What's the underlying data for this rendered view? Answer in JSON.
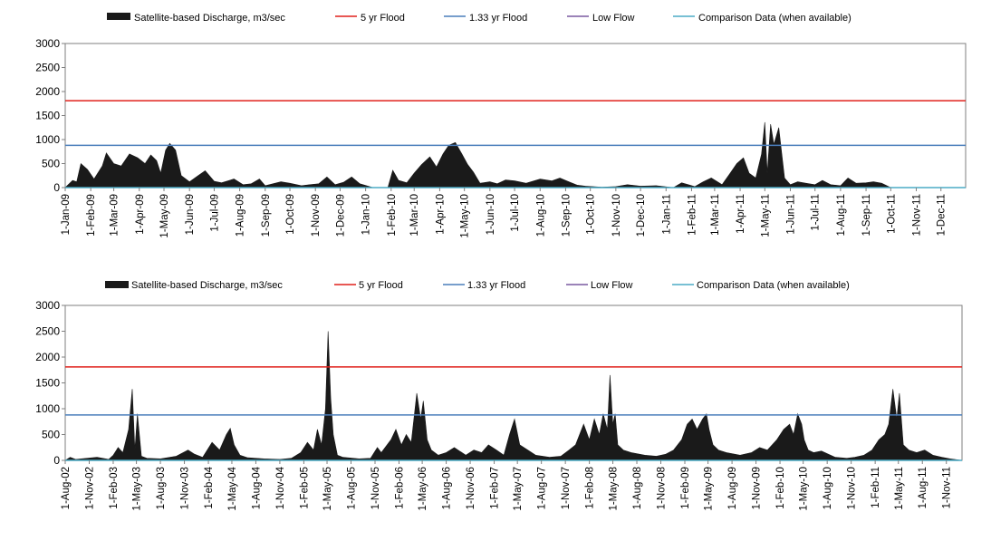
{
  "legend": {
    "discharge": "Satellite-based Discharge, m3/sec",
    "flood5": "5 yr Flood",
    "flood133": "1.33 yr Flood",
    "lowflow": "Low Flow",
    "comparison": "Comparison Data (when available)"
  },
  "colors": {
    "discharge": "#1a1a1a",
    "flood5": "#e0201b",
    "flood133": "#4a7ebb",
    "lowflow": "#7a5aa0",
    "comparison": "#4bacc6",
    "axis": "#7f7f7f"
  },
  "chart_data": [
    {
      "type": "area",
      "title": "",
      "xlabel": "",
      "ylabel": "",
      "ylim": [
        0,
        3000
      ],
      "yticks": [
        0,
        500,
        1000,
        1500,
        2000,
        2500,
        3000
      ],
      "xrange": [
        "2009-01-01",
        "2011-12-31"
      ],
      "xtick_labels": [
        "1-Jan-09",
        "1-Feb-09",
        "1-Mar-09",
        "1-Apr-09",
        "1-May-09",
        "1-Jun-09",
        "1-Jul-09",
        "1-Aug-09",
        "1-Sep-09",
        "1-Oct-09",
        "1-Nov-09",
        "1-Dec-09",
        "1-Jan-10",
        "1-Feb-10",
        "1-Mar-10",
        "1-Apr-10",
        "1-May-10",
        "1-Jun-10",
        "1-Jul-10",
        "1-Aug-10",
        "1-Sep-10",
        "1-Oct-10",
        "1-Nov-10",
        "1-Dec-10",
        "1-Jan-11",
        "1-Feb-11",
        "1-Mar-11",
        "1-Apr-11",
        "1-May-11",
        "1-Jun-11",
        "1-Jul-11",
        "1-Aug-11",
        "1-Sep-11",
        "1-Oct-11",
        "1-Nov-11",
        "1-Dec-11"
      ],
      "legend_position": "top",
      "grid": false,
      "reference_lines": [
        {
          "name": "5 yr Flood",
          "value": 1810
        },
        {
          "name": "1.33 yr Flood",
          "value": 880
        }
      ],
      "series": [
        {
          "name": "Satellite-based Discharge, m3/sec",
          "x": [
            "2009-01-01",
            "2009-01-10",
            "2009-01-15",
            "2009-01-20",
            "2009-01-28",
            "2009-02-05",
            "2009-02-15",
            "2009-02-20",
            "2009-03-01",
            "2009-03-10",
            "2009-03-20",
            "2009-03-30",
            "2009-04-08",
            "2009-04-15",
            "2009-04-22",
            "2009-04-27",
            "2009-05-03",
            "2009-05-08",
            "2009-05-15",
            "2009-05-22",
            "2009-06-01",
            "2009-06-10",
            "2009-06-20",
            "2009-07-01",
            "2009-07-10",
            "2009-07-25",
            "2009-08-05",
            "2009-08-15",
            "2009-08-25",
            "2009-09-01",
            "2009-09-20",
            "2009-10-01",
            "2009-10-15",
            "2009-10-25",
            "2009-11-05",
            "2009-11-15",
            "2009-11-25",
            "2009-12-05",
            "2009-12-15",
            "2009-12-25",
            "2010-01-10",
            "2010-01-28",
            "2010-02-03",
            "2010-02-10",
            "2010-02-20",
            "2010-03-01",
            "2010-03-10",
            "2010-03-20",
            "2010-03-28",
            "2010-04-05",
            "2010-04-12",
            "2010-04-20",
            "2010-04-28",
            "2010-05-05",
            "2010-05-12",
            "2010-05-20",
            "2010-06-01",
            "2010-06-10",
            "2010-06-20",
            "2010-07-01",
            "2010-07-15",
            "2010-08-01",
            "2010-08-15",
            "2010-08-25",
            "2010-09-05",
            "2010-09-15",
            "2010-09-25",
            "2010-10-15",
            "2010-11-01",
            "2010-11-15",
            "2010-12-01",
            "2010-12-20",
            "2011-01-10",
            "2011-01-20",
            "2011-02-05",
            "2011-02-15",
            "2011-02-25",
            "2011-03-10",
            "2011-03-20",
            "2011-03-28",
            "2011-04-05",
            "2011-04-12",
            "2011-04-20",
            "2011-04-27",
            "2011-05-01",
            "2011-05-04",
            "2011-05-08",
            "2011-05-12",
            "2011-05-18",
            "2011-05-25",
            "2011-06-01",
            "2011-06-10",
            "2011-06-20",
            "2011-07-01",
            "2011-07-10",
            "2011-07-20",
            "2011-08-01",
            "2011-08-10",
            "2011-08-20",
            "2011-09-01",
            "2011-09-10",
            "2011-09-20",
            "2011-10-01",
            "2011-11-01",
            "2011-12-01",
            "2011-12-31"
          ],
          "values": [
            0,
            150,
            120,
            500,
            380,
            180,
            450,
            720,
            500,
            450,
            700,
            620,
            500,
            680,
            560,
            300,
            780,
            920,
            780,
            250,
            120,
            230,
            350,
            130,
            100,
            180,
            60,
            80,
            180,
            40,
            120,
            90,
            40,
            60,
            80,
            220,
            60,
            110,
            220,
            80,
            0,
            0,
            360,
            150,
            100,
            300,
            480,
            640,
            430,
            700,
            880,
            940,
            700,
            480,
            320,
            90,
            120,
            80,
            160,
            140,
            90,
            180,
            140,
            200,
            120,
            50,
            30,
            10,
            20,
            60,
            30,
            40,
            0,
            100,
            20,
            120,
            200,
            60,
            300,
            500,
            620,
            300,
            200,
            700,
            1360,
            300,
            1320,
            900,
            1250,
            200,
            60,
            120,
            90,
            60,
            150,
            60,
            40,
            200,
            90,
            100,
            120,
            90,
            0,
            0,
            0,
            0
          ]
        },
        {
          "name": "Low Flow",
          "values": []
        },
        {
          "name": "Comparison Data (when available)",
          "values": []
        }
      ]
    },
    {
      "type": "area",
      "title": "",
      "xlabel": "",
      "ylabel": "",
      "ylim": [
        0,
        3000
      ],
      "yticks": [
        0,
        500,
        1000,
        1500,
        2000,
        2500,
        3000
      ],
      "xrange": [
        "2002-08-01",
        "2011-12-31"
      ],
      "xtick_labels": [
        "1-Aug-02",
        "1-Nov-02",
        "1-Feb-03",
        "1-May-03",
        "1-Aug-03",
        "1-Nov-03",
        "1-Feb-04",
        "1-May-04",
        "1-Aug-04",
        "1-Nov-04",
        "1-Feb-05",
        "1-May-05",
        "1-Aug-05",
        "1-Nov-05",
        "1-Feb-06",
        "1-May-06",
        "1-Aug-06",
        "1-Nov-06",
        "1-Feb-07",
        "1-May-07",
        "1-Aug-07",
        "1-Nov-07",
        "1-Feb-08",
        "1-May-08",
        "1-Aug-08",
        "1-Nov-08",
        "1-Feb-09",
        "1-May-09",
        "1-Aug-09",
        "1-Nov-09",
        "1-Feb-10",
        "1-May-10",
        "1-Aug-10",
        "1-Nov-10",
        "1-Feb-11",
        "1-May-11",
        "1-Aug-11",
        "1-Nov-11"
      ],
      "legend_position": "top",
      "grid": false,
      "reference_lines": [
        {
          "name": "5 yr Flood",
          "value": 1810
        },
        {
          "name": "1.33 yr Flood",
          "value": 880
        }
      ],
      "series": [
        {
          "name": "Satellite-based Discharge, m3/sec",
          "x": [
            "2002-08-01",
            "2002-08-20",
            "2002-09-10",
            "2002-12-01",
            "2003-01-15",
            "2003-02-01",
            "2003-02-20",
            "2003-03-10",
            "2003-04-01",
            "2003-04-15",
            "2003-04-25",
            "2003-05-05",
            "2003-05-20",
            "2003-06-10",
            "2003-08-01",
            "2003-10-01",
            "2003-11-15",
            "2003-12-10",
            "2004-01-10",
            "2004-02-15",
            "2004-03-15",
            "2004-04-10",
            "2004-04-25",
            "2004-05-10",
            "2004-06-01",
            "2004-07-01",
            "2004-09-01",
            "2004-11-01",
            "2004-12-15",
            "2005-01-20",
            "2005-02-15",
            "2005-03-10",
            "2005-03-25",
            "2005-04-10",
            "2005-04-25",
            "2005-05-05",
            "2005-05-15",
            "2005-05-25",
            "2005-06-10",
            "2005-07-01",
            "2005-09-01",
            "2005-10-15",
            "2005-11-10",
            "2005-11-25",
            "2006-01-01",
            "2006-01-20",
            "2006-02-10",
            "2006-03-01",
            "2006-03-20",
            "2006-04-10",
            "2006-04-25",
            "2006-05-05",
            "2006-05-20",
            "2006-06-05",
            "2006-07-01",
            "2006-08-01",
            "2006-09-01",
            "2006-10-15",
            "2006-11-15",
            "2006-12-15",
            "2007-01-10",
            "2007-02-10",
            "2007-03-10",
            "2007-04-01",
            "2007-04-20",
            "2007-05-10",
            "2007-06-10",
            "2007-07-10",
            "2007-09-01",
            "2007-10-15",
            "2007-11-15",
            "2007-12-10",
            "2008-01-10",
            "2008-02-01",
            "2008-02-20",
            "2008-03-10",
            "2008-03-25",
            "2008-04-10",
            "2008-04-20",
            "2008-05-01",
            "2008-05-10",
            "2008-05-20",
            "2008-06-10",
            "2008-07-10",
            "2008-09-01",
            "2008-10-15",
            "2008-11-20",
            "2008-12-20",
            "2009-01-20",
            "2009-02-10",
            "2009-03-01",
            "2009-03-20",
            "2009-04-10",
            "2009-04-25",
            "2009-05-05",
            "2009-05-20",
            "2009-06-10",
            "2009-07-10",
            "2009-09-01",
            "2009-10-15",
            "2009-11-15",
            "2009-12-15",
            "2010-01-20",
            "2010-02-15",
            "2010-03-10",
            "2010-03-25",
            "2010-04-10",
            "2010-04-25",
            "2010-05-05",
            "2010-05-20",
            "2010-06-10",
            "2010-07-10",
            "2010-09-01",
            "2010-10-15",
            "2010-11-15",
            "2010-12-20",
            "2011-01-20",
            "2011-02-15",
            "2011-03-10",
            "2011-03-25",
            "2011-04-10",
            "2011-04-25",
            "2011-05-05",
            "2011-05-20",
            "2011-06-10",
            "2011-07-10",
            "2011-08-10",
            "2011-09-10",
            "2011-10-15",
            "2011-11-15",
            "2011-12-31"
          ],
          "values": [
            0,
            60,
            20,
            60,
            20,
            100,
            250,
            150,
            600,
            1380,
            200,
            900,
            80,
            40,
            30,
            80,
            200,
            120,
            60,
            350,
            200,
            500,
            620,
            300,
            100,
            50,
            30,
            20,
            40,
            150,
            350,
            200,
            600,
            300,
            1000,
            2500,
            1200,
            500,
            100,
            60,
            30,
            40,
            250,
            150,
            400,
            600,
            300,
            500,
            350,
            1300,
            800,
            1150,
            400,
            200,
            100,
            150,
            250,
            100,
            200,
            150,
            300,
            200,
            100,
            500,
            800,
            300,
            200,
            100,
            60,
            80,
            200,
            300,
            700,
            400,
            800,
            500,
            900,
            600,
            1650,
            700,
            900,
            300,
            200,
            150,
            100,
            80,
            120,
            200,
            400,
            700,
            800,
            600,
            800,
            900,
            600,
            300,
            200,
            150,
            100,
            150,
            250,
            200,
            400,
            600,
            700,
            500,
            900,
            700,
            400,
            200,
            150,
            180,
            60,
            40,
            60,
            100,
            200,
            400,
            500,
            700,
            1380,
            800,
            1300,
            300,
            200,
            150,
            200,
            100,
            60,
            30,
            0
          ]
        },
        {
          "name": "Low Flow",
          "values": []
        },
        {
          "name": "Comparison Data (when available)",
          "values": []
        }
      ]
    }
  ]
}
